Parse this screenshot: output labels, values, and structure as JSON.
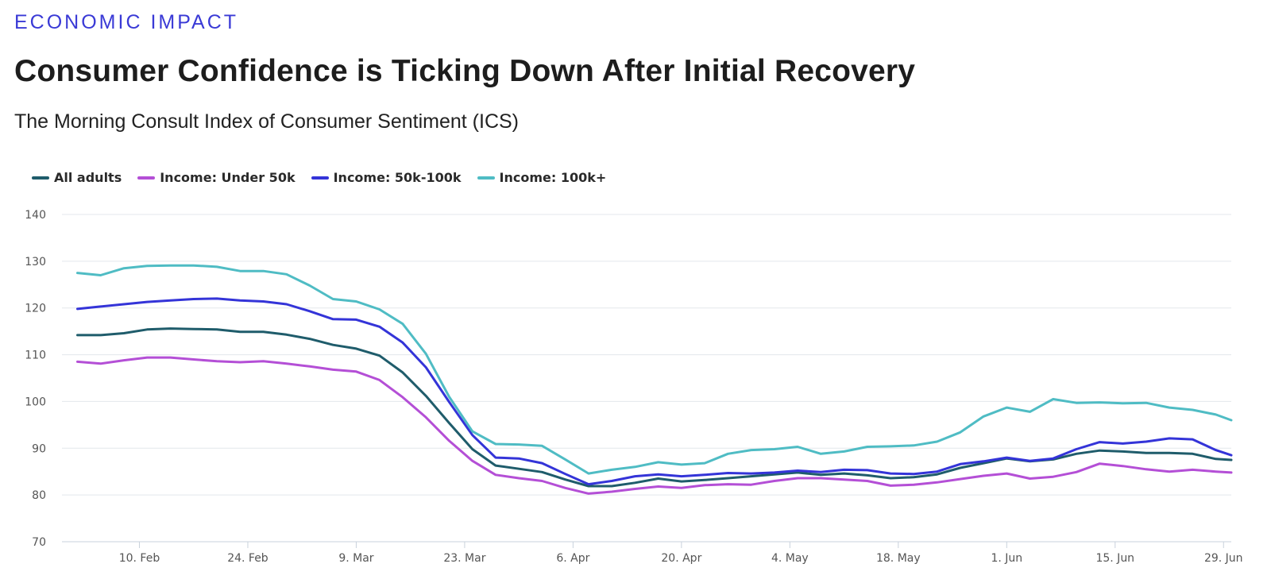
{
  "header": {
    "kicker": "ECONOMIC IMPACT",
    "title": "Consumer Confidence is Ticking Down After Initial Recovery",
    "subtitle": "The Morning Consult Index of Consumer Sentiment (ICS)"
  },
  "chart_data": {
    "type": "line",
    "title": "Consumer Confidence is Ticking Down After Initial Recovery",
    "subtitle": "The Morning Consult Index of Consumer Sentiment (ICS)",
    "xlabel": "",
    "ylabel": "",
    "ylim": [
      70,
      140
    ],
    "yticks": [
      70,
      80,
      90,
      100,
      110,
      120,
      130,
      140
    ],
    "xlim": [
      "2020-01-31",
      "2020-06-30"
    ],
    "x_ticks": [
      {
        "date": "2020-02-10",
        "label": "10. Feb"
      },
      {
        "date": "2020-02-24",
        "label": "24. Feb"
      },
      {
        "date": "2020-03-09",
        "label": "9. Mar"
      },
      {
        "date": "2020-03-23",
        "label": "23. Mar"
      },
      {
        "date": "2020-04-06",
        "label": "6. Apr"
      },
      {
        "date": "2020-04-20",
        "label": "20. Apr"
      },
      {
        "date": "2020-05-04",
        "label": "4. May"
      },
      {
        "date": "2020-05-18",
        "label": "18. May"
      },
      {
        "date": "2020-06-01",
        "label": "1. Jun"
      },
      {
        "date": "2020-06-15",
        "label": "15. Jun"
      },
      {
        "date": "2020-06-29",
        "label": "29. Jun"
      }
    ],
    "grid": true,
    "legend_position": "top-left",
    "x": [
      "2020-02-02",
      "2020-02-05",
      "2020-02-08",
      "2020-02-11",
      "2020-02-14",
      "2020-02-17",
      "2020-02-20",
      "2020-02-23",
      "2020-02-26",
      "2020-02-29",
      "2020-03-03",
      "2020-03-06",
      "2020-03-09",
      "2020-03-12",
      "2020-03-15",
      "2020-03-18",
      "2020-03-21",
      "2020-03-24",
      "2020-03-27",
      "2020-03-30",
      "2020-04-02",
      "2020-04-05",
      "2020-04-08",
      "2020-04-11",
      "2020-04-14",
      "2020-04-17",
      "2020-04-20",
      "2020-04-23",
      "2020-04-26",
      "2020-04-29",
      "2020-05-02",
      "2020-05-05",
      "2020-05-08",
      "2020-05-11",
      "2020-05-14",
      "2020-05-17",
      "2020-05-20",
      "2020-05-23",
      "2020-05-26",
      "2020-05-29",
      "2020-06-01",
      "2020-06-04",
      "2020-06-07",
      "2020-06-10",
      "2020-06-13",
      "2020-06-16",
      "2020-06-19",
      "2020-06-22",
      "2020-06-25",
      "2020-06-28",
      "2020-06-30"
    ],
    "series": [
      {
        "name": "All adults",
        "color": "#1f5c6b",
        "values": [
          114.2,
          114.2,
          114.6,
          115.4,
          115.6,
          115.5,
          115.4,
          114.9,
          114.9,
          114.3,
          113.4,
          112.1,
          111.3,
          109.8,
          106.2,
          101.2,
          95.4,
          89.8,
          86.3,
          85.6,
          84.9,
          83.3,
          81.9,
          81.9,
          82.6,
          83.5,
          82.9,
          83.2,
          83.6,
          84.0,
          84.4,
          84.8,
          84.3,
          84.6,
          84.2,
          83.6,
          83.8,
          84.4,
          85.8,
          86.8,
          87.8,
          87.2,
          87.6,
          88.8,
          89.5,
          89.3,
          89.0,
          89.0,
          88.8,
          87.7,
          87.5
        ]
      },
      {
        "name": "Income: Under 50k",
        "color": "#b44fd6",
        "values": [
          108.5,
          108.1,
          108.8,
          109.4,
          109.4,
          109.0,
          108.6,
          108.4,
          108.6,
          108.1,
          107.5,
          106.8,
          106.4,
          104.6,
          100.9,
          96.6,
          91.6,
          87.3,
          84.3,
          83.6,
          83.0,
          81.5,
          80.3,
          80.7,
          81.3,
          81.8,
          81.5,
          82.1,
          82.3,
          82.2,
          83.0,
          83.6,
          83.6,
          83.3,
          83.0,
          82.0,
          82.2,
          82.7,
          83.4,
          84.1,
          84.6,
          83.5,
          83.9,
          84.9,
          86.7,
          86.2,
          85.5,
          85.0,
          85.4,
          85.0,
          84.8
        ]
      },
      {
        "name": "Income: 50k-100k",
        "color": "#3434d8",
        "values": [
          119.8,
          120.3,
          120.8,
          121.3,
          121.6,
          121.9,
          122.0,
          121.6,
          121.4,
          120.8,
          119.3,
          117.6,
          117.5,
          116.0,
          112.6,
          107.3,
          99.9,
          92.8,
          88.0,
          87.8,
          86.8,
          84.5,
          82.3,
          83.0,
          84.0,
          84.4,
          84.0,
          84.3,
          84.7,
          84.6,
          84.8,
          85.2,
          84.9,
          85.4,
          85.3,
          84.6,
          84.5,
          85.0,
          86.6,
          87.2,
          88.0,
          87.3,
          87.8,
          89.8,
          91.3,
          91.0,
          91.4,
          92.1,
          91.9,
          89.6,
          88.5
        ]
      },
      {
        "name": "Income: 100k+",
        "color": "#4fbcc4",
        "values": [
          127.5,
          127.0,
          128.5,
          129.0,
          129.1,
          129.1,
          128.8,
          127.9,
          127.9,
          127.2,
          124.8,
          121.9,
          121.4,
          119.7,
          116.6,
          110.2,
          101.0,
          93.6,
          90.9,
          90.8,
          90.5,
          87.6,
          84.6,
          85.4,
          86.0,
          87.0,
          86.5,
          86.8,
          88.8,
          89.6,
          89.8,
          90.3,
          88.8,
          89.3,
          90.3,
          90.4,
          90.6,
          91.4,
          93.4,
          96.8,
          98.7,
          97.8,
          100.5,
          99.7,
          99.8,
          99.6,
          99.7,
          98.7,
          98.2,
          97.2,
          96.0
        ]
      }
    ]
  }
}
